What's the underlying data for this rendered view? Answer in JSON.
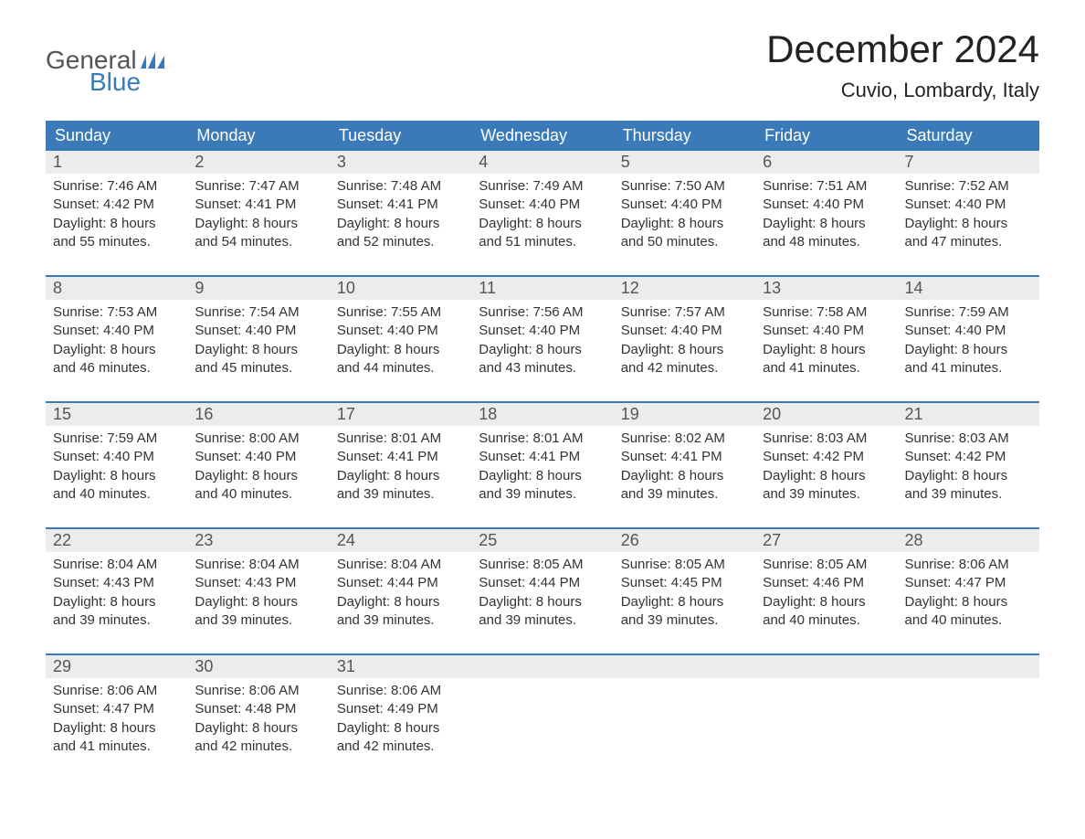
{
  "brand": {
    "part1": "General",
    "part2": "Blue"
  },
  "title": "December 2024",
  "location": "Cuvio, Lombardy, Italy",
  "colors": {
    "header_bg": "#3a7ab8",
    "header_text": "#ffffff",
    "daynum_bg": "#ececec",
    "text": "#333333",
    "logo_gray": "#555555",
    "logo_blue": "#3a7ab8",
    "background": "#ffffff",
    "week_border": "#3a7ab8"
  },
  "fonts": {
    "title_size": 42,
    "location_size": 22,
    "dayheader_size": 18,
    "daynum_size": 18,
    "body_size": 15
  },
  "day_names": [
    "Sunday",
    "Monday",
    "Tuesday",
    "Wednesday",
    "Thursday",
    "Friday",
    "Saturday"
  ],
  "labels": {
    "sunrise": "Sunrise: ",
    "sunset": "Sunset: ",
    "daylight_prefix": "Daylight: "
  },
  "weeks": [
    [
      {
        "n": "1",
        "sr": "7:46 AM",
        "ss": "4:42 PM",
        "dl": "8 hours and 55 minutes."
      },
      {
        "n": "2",
        "sr": "7:47 AM",
        "ss": "4:41 PM",
        "dl": "8 hours and 54 minutes."
      },
      {
        "n": "3",
        "sr": "7:48 AM",
        "ss": "4:41 PM",
        "dl": "8 hours and 52 minutes."
      },
      {
        "n": "4",
        "sr": "7:49 AM",
        "ss": "4:40 PM",
        "dl": "8 hours and 51 minutes."
      },
      {
        "n": "5",
        "sr": "7:50 AM",
        "ss": "4:40 PM",
        "dl": "8 hours and 50 minutes."
      },
      {
        "n": "6",
        "sr": "7:51 AM",
        "ss": "4:40 PM",
        "dl": "8 hours and 48 minutes."
      },
      {
        "n": "7",
        "sr": "7:52 AM",
        "ss": "4:40 PM",
        "dl": "8 hours and 47 minutes."
      }
    ],
    [
      {
        "n": "8",
        "sr": "7:53 AM",
        "ss": "4:40 PM",
        "dl": "8 hours and 46 minutes."
      },
      {
        "n": "9",
        "sr": "7:54 AM",
        "ss": "4:40 PM",
        "dl": "8 hours and 45 minutes."
      },
      {
        "n": "10",
        "sr": "7:55 AM",
        "ss": "4:40 PM",
        "dl": "8 hours and 44 minutes."
      },
      {
        "n": "11",
        "sr": "7:56 AM",
        "ss": "4:40 PM",
        "dl": "8 hours and 43 minutes."
      },
      {
        "n": "12",
        "sr": "7:57 AM",
        "ss": "4:40 PM",
        "dl": "8 hours and 42 minutes."
      },
      {
        "n": "13",
        "sr": "7:58 AM",
        "ss": "4:40 PM",
        "dl": "8 hours and 41 minutes."
      },
      {
        "n": "14",
        "sr": "7:59 AM",
        "ss": "4:40 PM",
        "dl": "8 hours and 41 minutes."
      }
    ],
    [
      {
        "n": "15",
        "sr": "7:59 AM",
        "ss": "4:40 PM",
        "dl": "8 hours and 40 minutes."
      },
      {
        "n": "16",
        "sr": "8:00 AM",
        "ss": "4:40 PM",
        "dl": "8 hours and 40 minutes."
      },
      {
        "n": "17",
        "sr": "8:01 AM",
        "ss": "4:41 PM",
        "dl": "8 hours and 39 minutes."
      },
      {
        "n": "18",
        "sr": "8:01 AM",
        "ss": "4:41 PM",
        "dl": "8 hours and 39 minutes."
      },
      {
        "n": "19",
        "sr": "8:02 AM",
        "ss": "4:41 PM",
        "dl": "8 hours and 39 minutes."
      },
      {
        "n": "20",
        "sr": "8:03 AM",
        "ss": "4:42 PM",
        "dl": "8 hours and 39 minutes."
      },
      {
        "n": "21",
        "sr": "8:03 AM",
        "ss": "4:42 PM",
        "dl": "8 hours and 39 minutes."
      }
    ],
    [
      {
        "n": "22",
        "sr": "8:04 AM",
        "ss": "4:43 PM",
        "dl": "8 hours and 39 minutes."
      },
      {
        "n": "23",
        "sr": "8:04 AM",
        "ss": "4:43 PM",
        "dl": "8 hours and 39 minutes."
      },
      {
        "n": "24",
        "sr": "8:04 AM",
        "ss": "4:44 PM",
        "dl": "8 hours and 39 minutes."
      },
      {
        "n": "25",
        "sr": "8:05 AM",
        "ss": "4:44 PM",
        "dl": "8 hours and 39 minutes."
      },
      {
        "n": "26",
        "sr": "8:05 AM",
        "ss": "4:45 PM",
        "dl": "8 hours and 39 minutes."
      },
      {
        "n": "27",
        "sr": "8:05 AM",
        "ss": "4:46 PM",
        "dl": "8 hours and 40 minutes."
      },
      {
        "n": "28",
        "sr": "8:06 AM",
        "ss": "4:47 PM",
        "dl": "8 hours and 40 minutes."
      }
    ],
    [
      {
        "n": "29",
        "sr": "8:06 AM",
        "ss": "4:47 PM",
        "dl": "8 hours and 41 minutes."
      },
      {
        "n": "30",
        "sr": "8:06 AM",
        "ss": "4:48 PM",
        "dl": "8 hours and 42 minutes."
      },
      {
        "n": "31",
        "sr": "8:06 AM",
        "ss": "4:49 PM",
        "dl": "8 hours and 42 minutes."
      },
      null,
      null,
      null,
      null
    ]
  ]
}
